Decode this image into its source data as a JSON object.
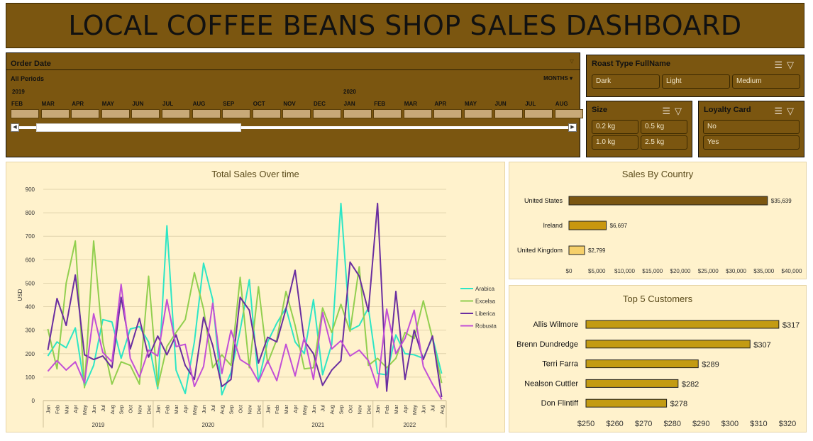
{
  "dashboard": {
    "title": "LOCAL COFFEE BEANS SHOP SALES DASHBOARD"
  },
  "timeline": {
    "header": "Order Date",
    "periods_label": "All Periods",
    "level_label": "MONTHS",
    "years": [
      "2019",
      "2020"
    ],
    "months": [
      "FEB",
      "MAR",
      "APR",
      "MAY",
      "JUN",
      "JUL",
      "AUG",
      "SEP",
      "OCT",
      "NOV",
      "DEC",
      "JAN",
      "FEB",
      "MAR",
      "APR",
      "MAY",
      "JUN",
      "JUL",
      "AUG"
    ],
    "selected_fraction": 0.37
  },
  "slicers": {
    "roast": {
      "title": "Roast Type FullName",
      "items": [
        "Dark",
        "Light",
        "Medium"
      ]
    },
    "size": {
      "title": "Size",
      "items": [
        "0.2 kg",
        "0.5 kg",
        "1.0 kg",
        "2.5 kg"
      ]
    },
    "loyalty": {
      "title": "Loyalty Card",
      "items": [
        "No",
        "Yes"
      ]
    }
  },
  "colors": {
    "brown": "#7b5610",
    "panel": "#fff2cc",
    "arabica": "#2ee6c5",
    "excelsa": "#92cf4f",
    "liberica": "#6a2ea0",
    "robusta": "#c24fd6",
    "us": "#7b5610",
    "ie": "#c9970f",
    "uk": "#f6d06a",
    "bars": "#c39b12"
  },
  "chart_data": [
    {
      "type": "line",
      "title": "Total Sales Over time",
      "ylabel": "USD",
      "ylim": [
        0,
        900
      ],
      "yticks": [
        0,
        100,
        200,
        300,
        400,
        500,
        600,
        700,
        800,
        900
      ],
      "months": [
        "Jan",
        "Feb",
        "Mar",
        "Apr",
        "May",
        "Jun",
        "Jul",
        "Aug",
        "Sep",
        "Oct",
        "Nov",
        "Dec"
      ],
      "years": [
        "2019",
        "2020",
        "2021",
        "2022"
      ],
      "x_count": 44,
      "series": [
        {
          "name": "Arabica",
          "values": [
            190,
            250,
            225,
            310,
            60,
            150,
            345,
            335,
            180,
            305,
            315,
            250,
            50,
            745,
            130,
            30,
            250,
            585,
            430,
            25,
            120,
            300,
            515,
            80,
            250,
            330,
            395,
            250,
            200,
            430,
            110,
            240,
            840,
            300,
            320,
            395,
            115,
            110,
            280,
            200,
            195,
            180,
            270,
            115
          ]
        },
        {
          "name": "Excelsa",
          "values": [
            305,
            135,
            500,
            680,
            55,
            680,
            250,
            70,
            165,
            150,
            70,
            530,
            60,
            230,
            290,
            345,
            545,
            390,
            140,
            195,
            150,
            525,
            140,
            485,
            160,
            260,
            465,
            320,
            135,
            140,
            395,
            290,
            410,
            295,
            570,
            150,
            180,
            140,
            180,
            290,
            265,
            425,
            265,
            75
          ]
        },
        {
          "name": "Liberica",
          "values": [
            215,
            435,
            320,
            535,
            195,
            175,
            190,
            140,
            440,
            220,
            350,
            185,
            275,
            195,
            280,
            150,
            90,
            355,
            235,
            60,
            90,
            440,
            385,
            160,
            270,
            250,
            390,
            555,
            255,
            200,
            65,
            130,
            170,
            590,
            530,
            380,
            840,
            40,
            465,
            90,
            300,
            175,
            275,
            15
          ]
        },
        {
          "name": "Robusta",
          "values": [
            125,
            170,
            130,
            165,
            75,
            370,
            205,
            165,
            495,
            180,
            100,
            215,
            190,
            430,
            230,
            240,
            60,
            145,
            415,
            115,
            300,
            175,
            150,
            80,
            170,
            85,
            240,
            105,
            270,
            90,
            375,
            220,
            255,
            190,
            215,
            170,
            55,
            390,
            200,
            265,
            385,
            145,
            70,
            5
          ]
        }
      ]
    },
    {
      "type": "bar",
      "title": "Sales By Country",
      "categories": [
        "United States",
        "Ireland",
        "United Kingdom"
      ],
      "values": [
        35639,
        6697,
        2799
      ],
      "value_labels": [
        "$35,639",
        "$6,697",
        "$2,799"
      ],
      "xlim": [
        0,
        40000
      ],
      "xticks": [
        "$0",
        "$5,000",
        "$10,000",
        "$15,000",
        "$20,000",
        "$25,000",
        "$30,000",
        "$35,000",
        "$40,000"
      ]
    },
    {
      "type": "bar",
      "title": "Top 5 Customers",
      "categories": [
        "Allis Wilmore",
        "Brenn Dundredge",
        "Terri Farra",
        "Nealson Cuttler",
        "Don Flintiff"
      ],
      "values": [
        317,
        307,
        289,
        282,
        278
      ],
      "value_labels": [
        "$317",
        "$307",
        "$289",
        "$282",
        "$278"
      ],
      "xlim": [
        250,
        320
      ],
      "xticks": [
        "$250",
        "$260",
        "$270",
        "$280",
        "$290",
        "$300",
        "$310",
        "$320"
      ]
    }
  ]
}
